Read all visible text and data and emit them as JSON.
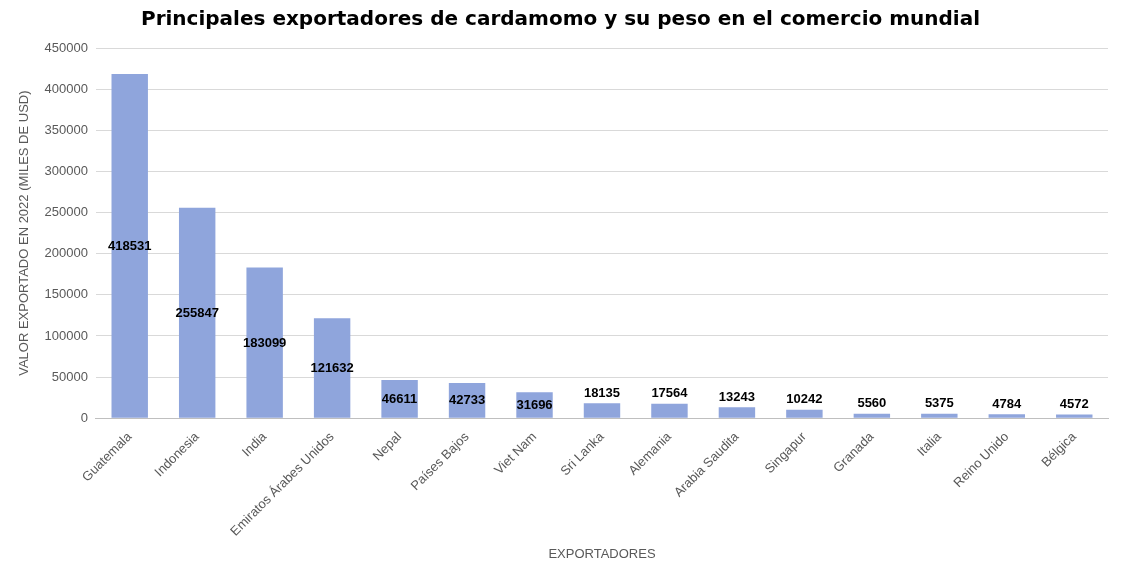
{
  "chart_data": {
    "type": "bar",
    "title": "Principales exportadores de cardamomo y su peso en el comercio mundial",
    "xlabel": "EXPORTADORES",
    "ylabel": "VALOR EXPORTADO EN 2022 (MILES DE USD)",
    "categories": [
      "Guatemala",
      "Indonesia",
      "India",
      "Emiratos Árabes Unidos",
      "Nepal",
      "Países Bajos",
      "Viet Nam",
      "Sri Lanka",
      "Alemania",
      "Arabia Saudita",
      "Singapur",
      "Granada",
      "Italia",
      "Reino Unido",
      "Bélgica"
    ],
    "values": [
      418531,
      255847,
      183099,
      121632,
      46611,
      42733,
      31696,
      18135,
      17564,
      13243,
      10242,
      5560,
      5375,
      4784,
      4572
    ],
    "color": "#8fa5dc",
    "ylim": [
      0,
      450000
    ],
    "yticks": [
      0,
      50000,
      100000,
      150000,
      200000,
      250000,
      300000,
      350000,
      400000,
      450000
    ],
    "grid": "y",
    "data_labels": true
  }
}
